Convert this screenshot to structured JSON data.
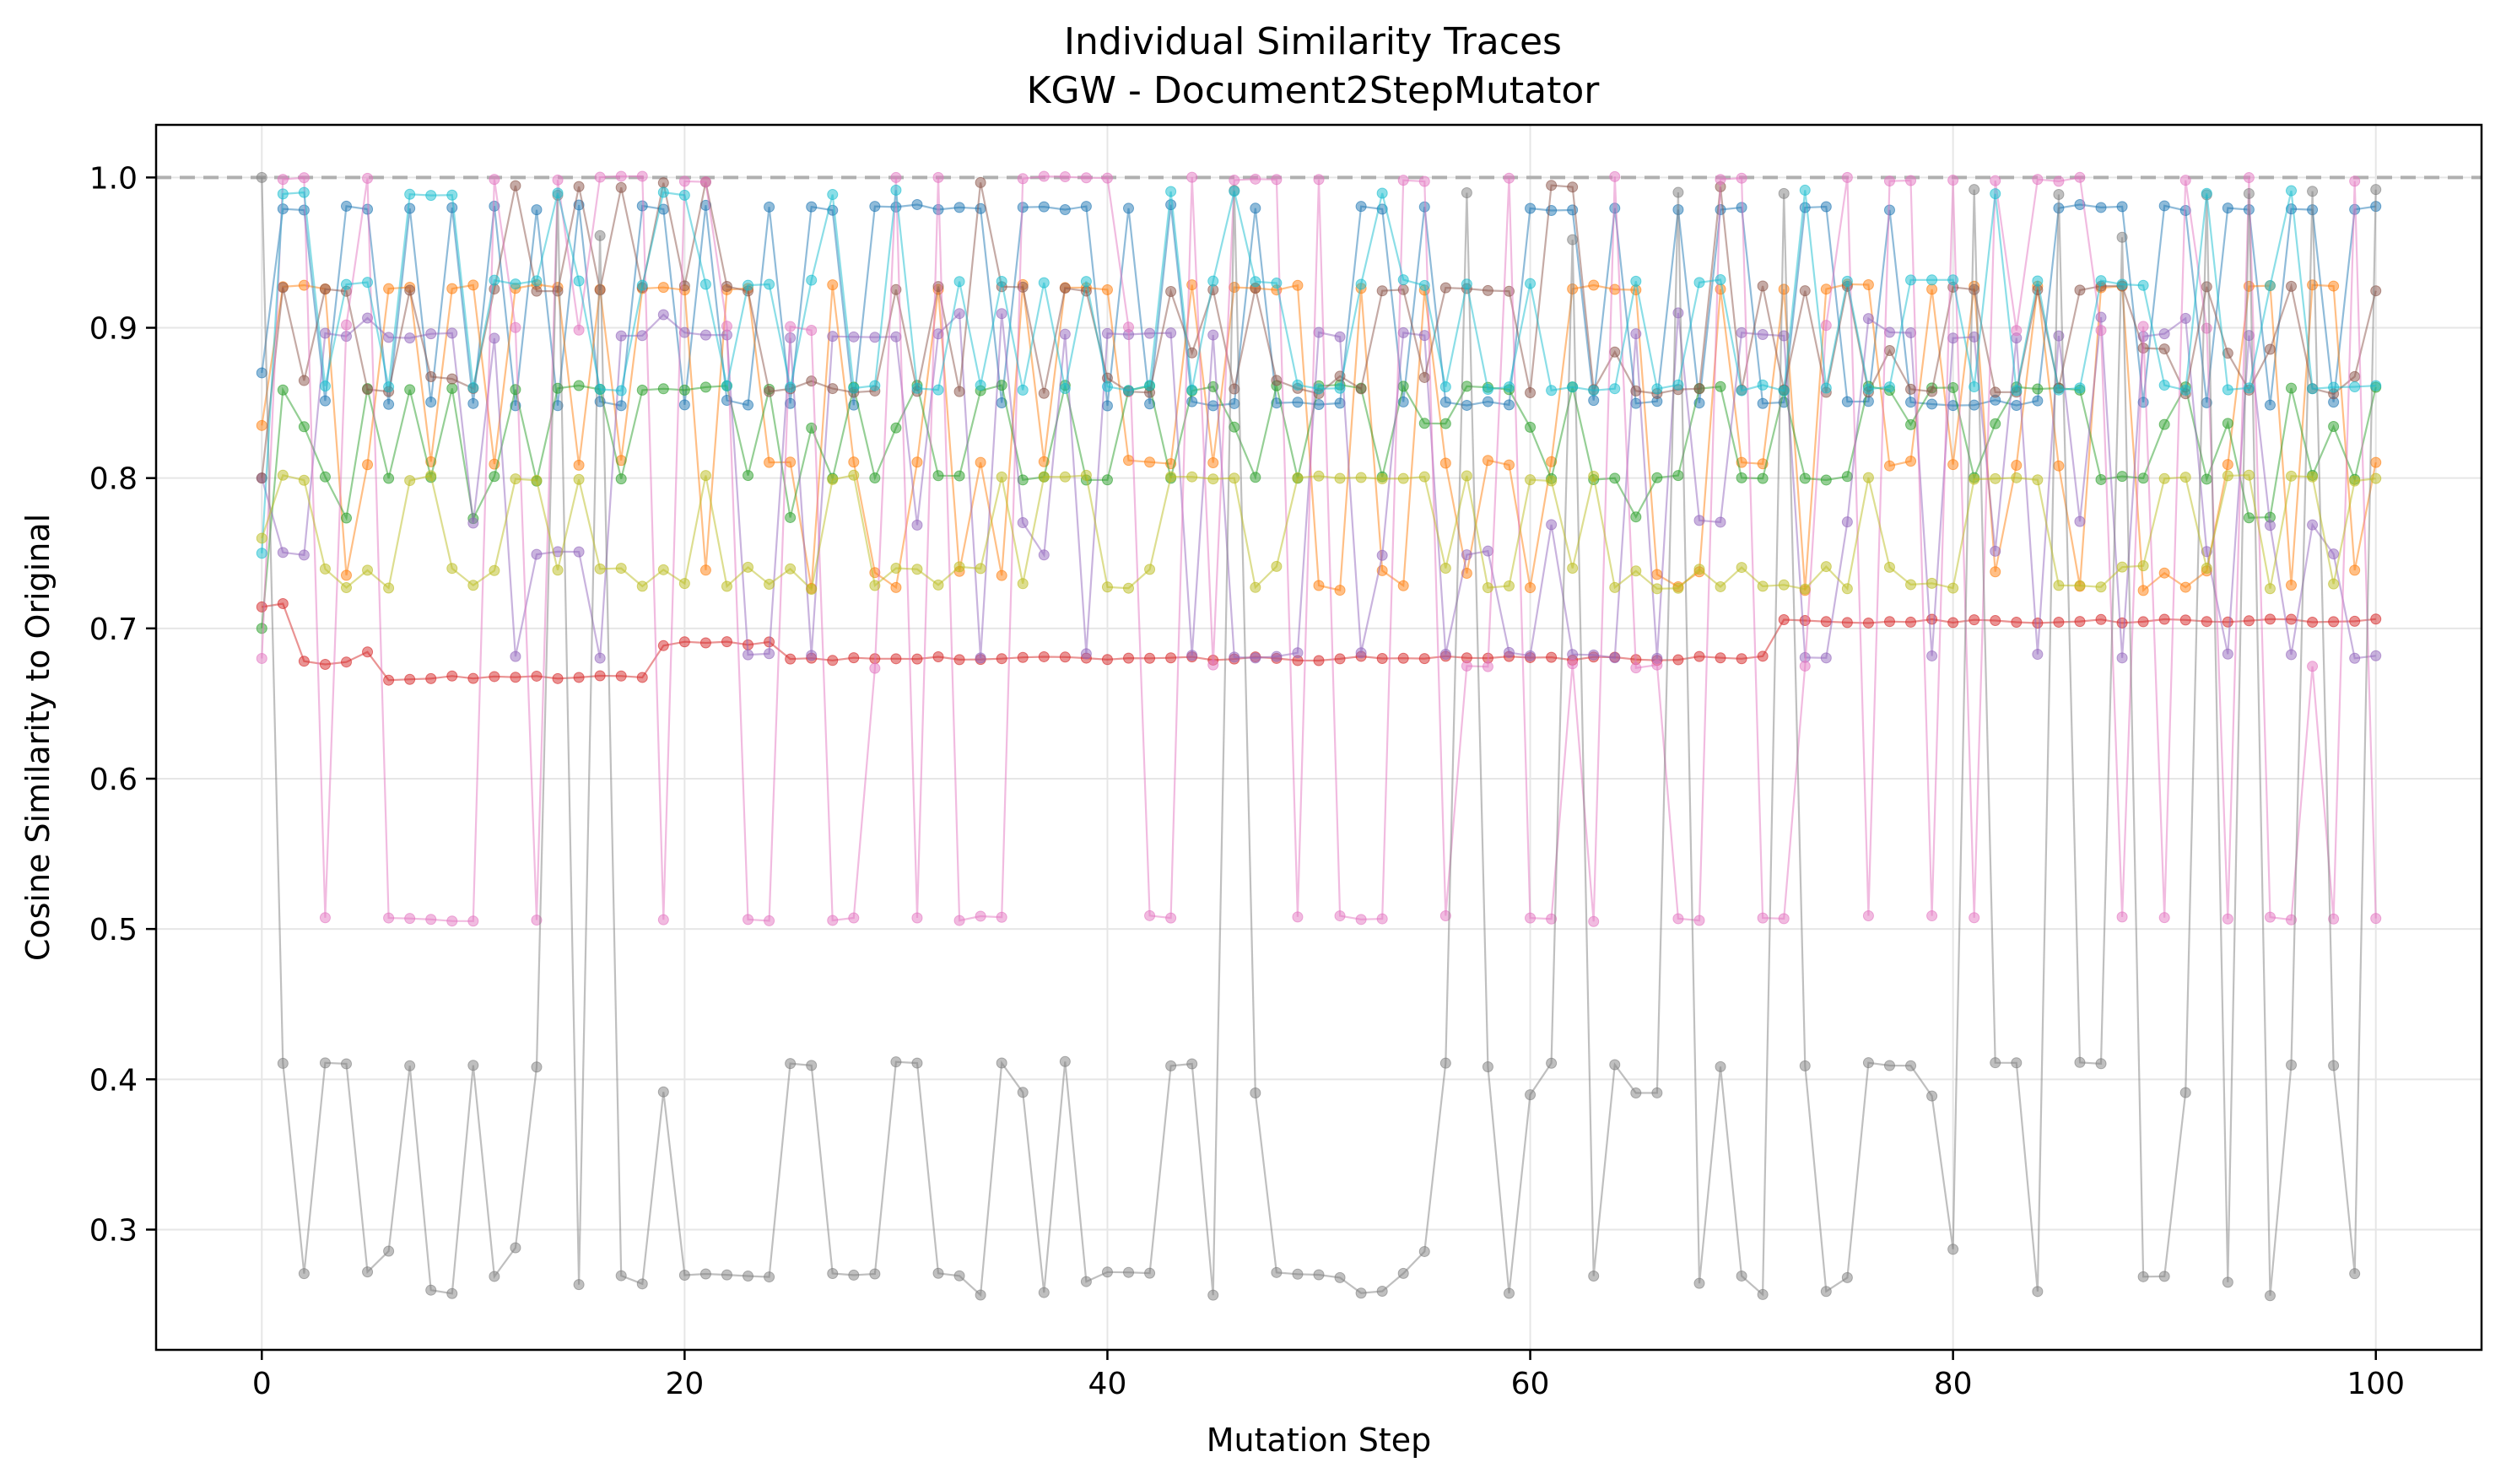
{
  "chart_data": {
    "type": "line",
    "title": "Individual Similarity Traces",
    "subtitle": "KGW - Document2StepMutator",
    "xlabel": "Mutation Step",
    "ylabel": "Cosine Similarity to Original",
    "xlim": [
      -5,
      105
    ],
    "ylim": [
      0.22,
      1.035
    ],
    "x_ticks": [
      0,
      20,
      40,
      60,
      80,
      100
    ],
    "y_ticks": [
      0.3,
      0.4,
      0.5,
      0.6,
      0.7,
      0.8,
      0.9,
      1.0
    ],
    "y_tick_labels": [
      "0.3",
      "0.4",
      "0.5",
      "0.6",
      "0.7",
      "0.8",
      "0.9",
      "1.0"
    ],
    "grid": true,
    "reference_line": {
      "y": 1.0,
      "style": "dashed",
      "color": "#b0b0b0"
    },
    "marker": "circle",
    "x": [
      0,
      1,
      2,
      3,
      4,
      5,
      6,
      7,
      8,
      9,
      10,
      11,
      12,
      13,
      14,
      15,
      16,
      17,
      18,
      19,
      20,
      21,
      22,
      23,
      24,
      25,
      26,
      27,
      28,
      29,
      30,
      31,
      32,
      33,
      34,
      35,
      36,
      37,
      38,
      39,
      40,
      41,
      42,
      43,
      44,
      45,
      46,
      47,
      48,
      49,
      50,
      51,
      52,
      53,
      54,
      55,
      56,
      57,
      58,
      59,
      60,
      61,
      62,
      63,
      64,
      65,
      66,
      67,
      68,
      69,
      70,
      71,
      72,
      73,
      74,
      75,
      76,
      77,
      78,
      79,
      80,
      81,
      82,
      83,
      84,
      85,
      86,
      87,
      88,
      89,
      90,
      91,
      92,
      93,
      94,
      95,
      96,
      97,
      98,
      99,
      100
    ],
    "series": [
      {
        "color": "#1f77b4",
        "low": 0.85,
        "high": 0.98,
        "start": 0.87,
        "high_prob": 0.5,
        "seed": 11
      },
      {
        "color": "#ff7f0e",
        "low": 0.81,
        "high": 0.927,
        "start": 0.835,
        "high_prob": 0.55,
        "seed": 23,
        "extra": [
          0.737,
          0.727
        ],
        "extra_prob": 0.25
      },
      {
        "color": "#2ca02c",
        "low": 0.8,
        "high": 0.86,
        "start": 0.7,
        "high_prob": 0.5,
        "seed": 37,
        "extra": [
          0.835,
          0.775
        ],
        "extra_prob": 0.2
      },
      {
        "color": "#d62728",
        "low": 0.68,
        "high": 0.705,
        "start": 0.715,
        "high_prob": 0.0,
        "seed": 41,
        "steps": [
          [
            0,
            0.715
          ],
          [
            2,
            0.677
          ],
          [
            5,
            0.685
          ],
          [
            6,
            0.667
          ],
          [
            19,
            0.69
          ],
          [
            25,
            0.68
          ],
          [
            72,
            0.705
          ],
          [
            100,
            0.705
          ]
        ]
      },
      {
        "color": "#9467bd",
        "low": 0.682,
        "high": 0.895,
        "start": 0.8,
        "high_prob": 0.5,
        "seed": 53,
        "extra": [
          0.75,
          0.77,
          0.908
        ],
        "extra_prob": 0.3
      },
      {
        "color": "#8c564b",
        "low": 0.858,
        "high": 0.926,
        "start": 0.8,
        "high_prob": 0.5,
        "seed": 67,
        "extra": [
          0.995,
          0.885,
          0.866
        ],
        "extra_prob": 0.3
      },
      {
        "color": "#e377c2",
        "low": 0.507,
        "high": 0.999,
        "start": 0.68,
        "high_prob": 0.5,
        "seed": 71,
        "extra": [
          0.9,
          0.675
        ],
        "extra_prob": 0.15
      },
      {
        "color": "#7f7f7f",
        "low": 0.27,
        "high": 0.41,
        "start": 1.0,
        "high_prob": 0.5,
        "seed": 83,
        "extra": [
          0.99,
          0.96,
          0.39,
          0.287,
          0.258,
          0.265
        ],
        "extra_prob": 0.45
      },
      {
        "color": "#17becf",
        "low": 0.86,
        "high": 0.93,
        "start": 0.75,
        "high_prob": 0.45,
        "seed": 97,
        "extra": [
          0.99
        ],
        "extra_prob": 0.15
      },
      {
        "color": "#bcbd22",
        "low": 0.728,
        "high": 0.8,
        "start": 0.76,
        "high_prob": 0.5,
        "seed": 101,
        "extra": [
          0.74
        ],
        "extra_prob": 0.2
      }
    ]
  }
}
